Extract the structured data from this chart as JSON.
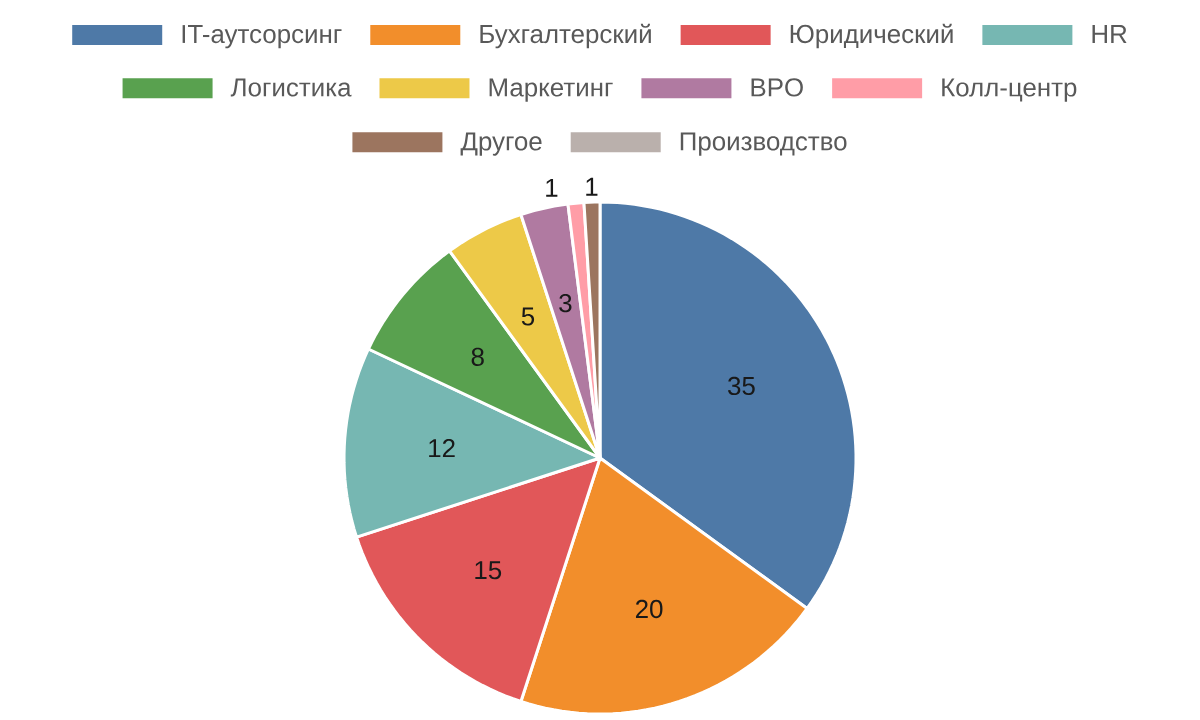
{
  "chart_data": {
    "type": "pie",
    "legend": "top",
    "data_labels": true,
    "categories": [
      "IT-аутсорсинг",
      "Бухгалтерский",
      "Юридический",
      "HR",
      "Логистика",
      "Маркетинг",
      "BPO",
      "Колл-центр",
      "Другое",
      "Производство"
    ],
    "values": [
      35,
      20,
      15,
      12,
      8,
      5,
      3,
      1,
      1,
      0
    ],
    "colors": [
      "#4e79a7",
      "#f28e2b",
      "#e15759",
      "#76b7b2",
      "#59a14f",
      "#edc948",
      "#b07aa1",
      "#ff9da7",
      "#9c755f",
      "#bab0ac"
    ]
  }
}
